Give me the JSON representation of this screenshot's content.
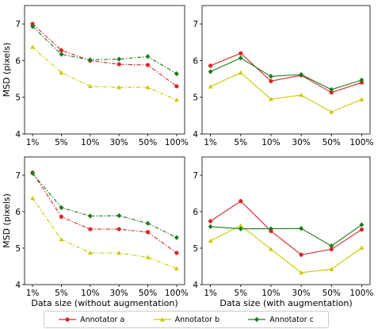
{
  "colors": {
    "a": "#d62728",
    "b": "#c9c900",
    "c": "#1a7a1a"
  },
  "chart_data": [
    {
      "type": "line",
      "panel": "top-left",
      "categories": [
        "1%",
        "5%",
        "10%",
        "30%",
        "50%",
        "100%"
      ],
      "ylim": [
        4,
        7.5
      ],
      "yticks": [
        "4",
        "5",
        "6",
        "7"
      ],
      "ylabel": "MSD (pixels)",
      "xlabel": "",
      "line_style": "dashdot",
      "series": [
        {
          "name": "Annotator a",
          "values": [
            7.0,
            6.28,
            6.0,
            5.9,
            5.88,
            5.3
          ]
        },
        {
          "name": "Annotator b",
          "values": [
            6.37,
            5.67,
            5.3,
            5.27,
            5.27,
            4.93
          ]
        },
        {
          "name": "Annotator c",
          "values": [
            6.93,
            6.17,
            6.02,
            6.04,
            6.11,
            5.64
          ]
        }
      ]
    },
    {
      "type": "line",
      "panel": "top-right",
      "categories": [
        "1%",
        "5%",
        "10%",
        "30%",
        "50%",
        "100%"
      ],
      "ylim": [
        4,
        7.5
      ],
      "yticks": [
        "4",
        "5",
        "6",
        "7"
      ],
      "ylabel": "",
      "xlabel": "",
      "line_style": "solid",
      "series": [
        {
          "name": "Annotator a",
          "values": [
            5.86,
            6.2,
            5.44,
            5.6,
            5.13,
            5.4
          ]
        },
        {
          "name": "Annotator b",
          "values": [
            5.29,
            5.67,
            4.95,
            5.06,
            4.6,
            4.94
          ]
        },
        {
          "name": "Annotator c",
          "values": [
            5.7,
            6.07,
            5.57,
            5.62,
            5.21,
            5.47
          ]
        }
      ]
    },
    {
      "type": "line",
      "panel": "bottom-left",
      "categories": [
        "1%",
        "5%",
        "10%",
        "30%",
        "50%",
        "100%"
      ],
      "ylim": [
        4,
        7.5
      ],
      "yticks": [
        "4",
        "5",
        "6",
        "7"
      ],
      "ylabel": "MSD (pixels)",
      "xlabel": "Data size (without augmentation)",
      "line_style": "dashdot",
      "series": [
        {
          "name": "Annotator a",
          "values": [
            7.07,
            5.86,
            5.52,
            5.52,
            5.44,
            4.87
          ]
        },
        {
          "name": "Annotator b",
          "values": [
            6.37,
            5.24,
            4.87,
            4.87,
            4.75,
            4.44
          ]
        },
        {
          "name": "Annotator c",
          "values": [
            7.05,
            6.11,
            5.88,
            5.89,
            5.68,
            5.29
          ]
        }
      ]
    },
    {
      "type": "line",
      "panel": "bottom-right",
      "categories": [
        "1%",
        "5%",
        "10%",
        "30%",
        "50%",
        "100%"
      ],
      "ylim": [
        4,
        7.5
      ],
      "yticks": [
        "4",
        "5",
        "6",
        "7"
      ],
      "ylabel": "",
      "xlabel": "Data size (with augmentation)",
      "line_style": "solid",
      "series": [
        {
          "name": "Annotator a",
          "values": [
            5.74,
            6.29,
            5.47,
            4.82,
            4.97,
            5.51
          ]
        },
        {
          "name": "Annotator b",
          "values": [
            5.2,
            5.62,
            4.97,
            4.33,
            4.42,
            5.01
          ]
        },
        {
          "name": "Annotator c",
          "values": [
            5.59,
            5.53,
            5.53,
            5.54,
            5.06,
            5.64
          ]
        }
      ]
    }
  ],
  "legend": {
    "items": [
      {
        "label": "Annotator a"
      },
      {
        "label": "Annotator b"
      },
      {
        "label": "Annotator c"
      }
    ]
  }
}
